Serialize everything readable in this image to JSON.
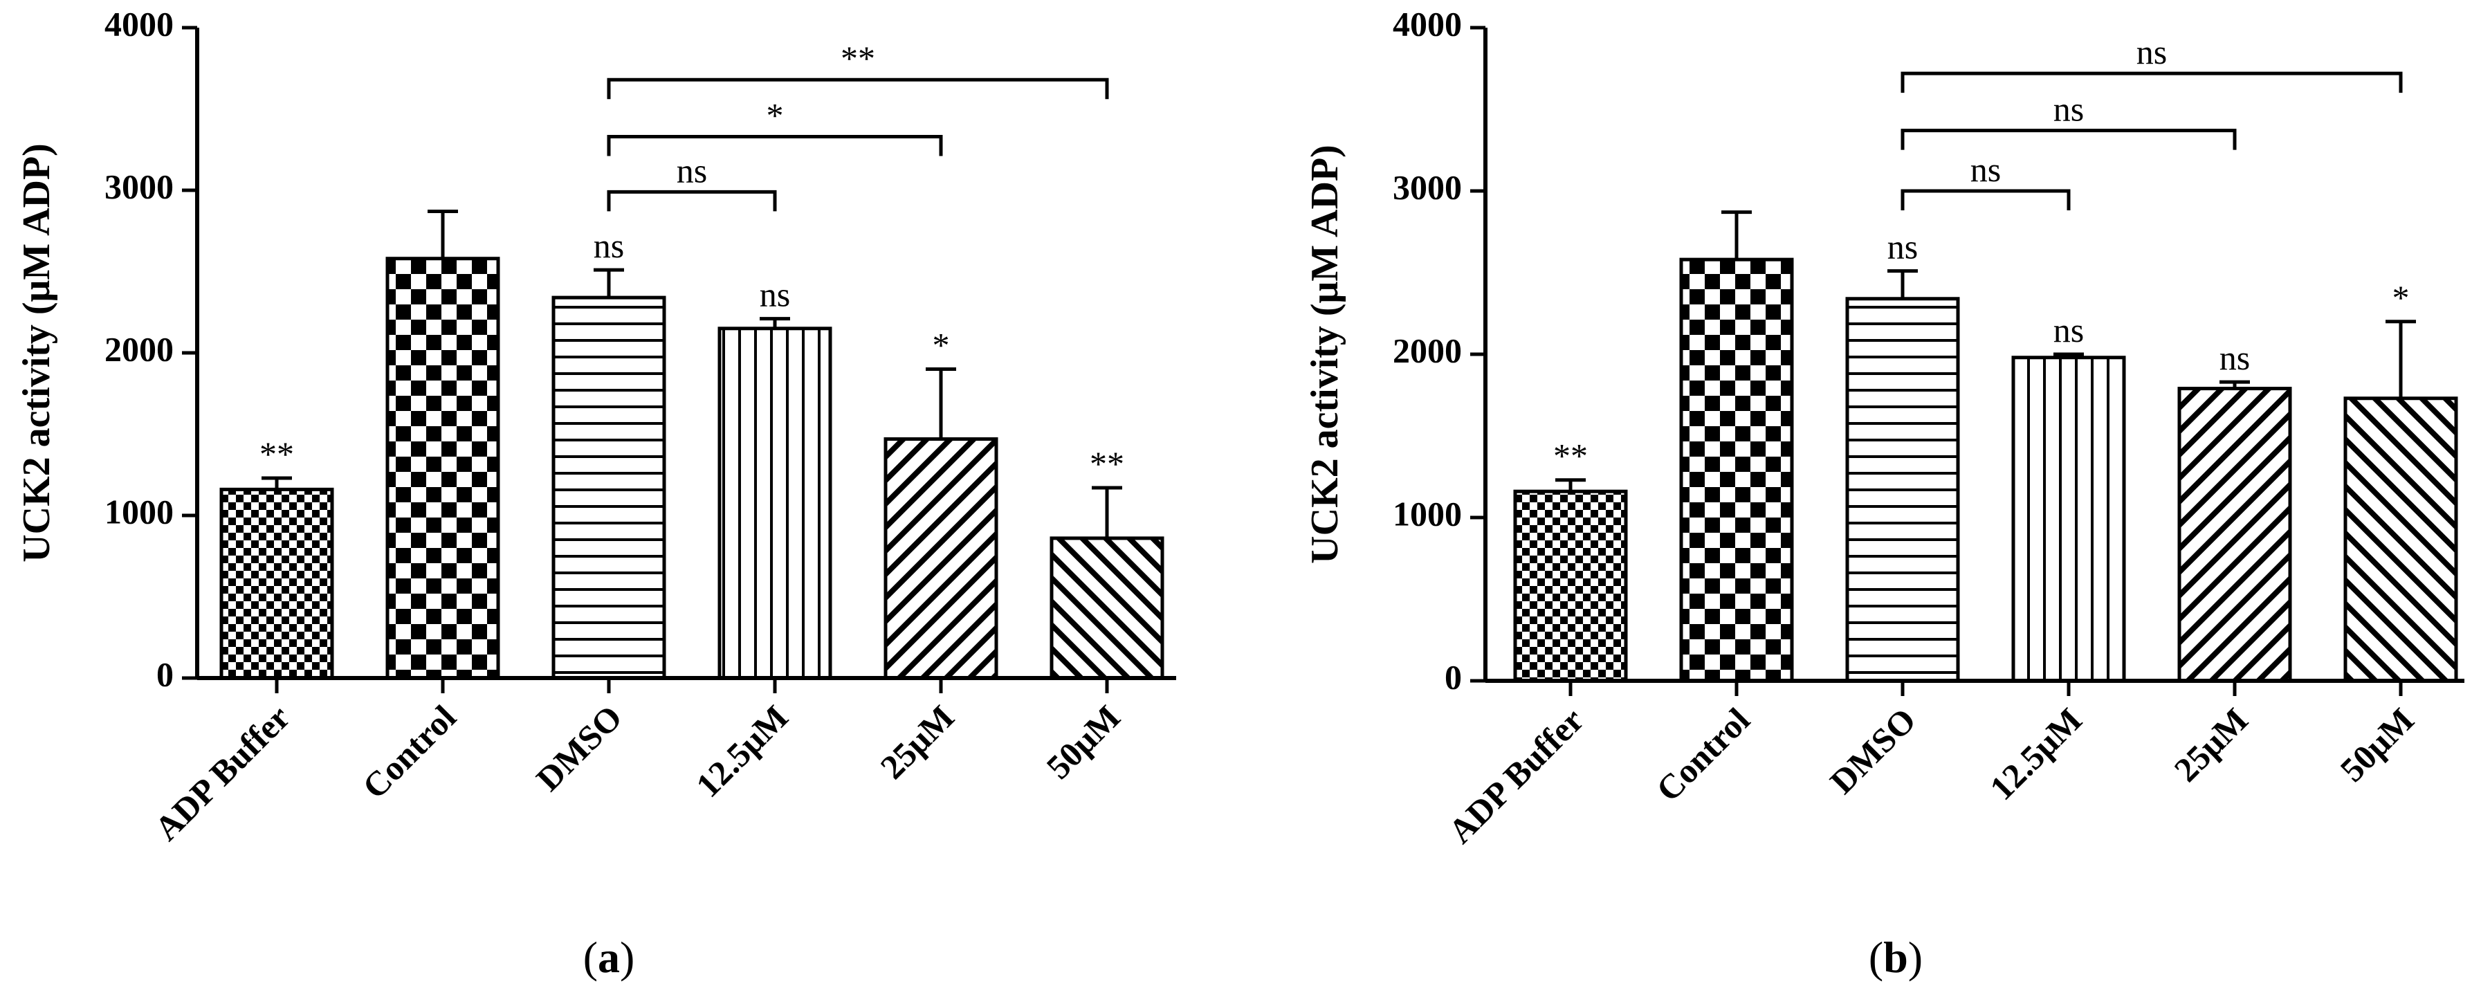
{
  "patterns": {
    "ADP Buffer": "fine-checker",
    "Control": "checker",
    "DMSO": "horizontal-lines",
    "12.5μM": "vertical-lines",
    "25μM": "diagonal-lines",
    "50μM": "anti-diagonal-lines"
  },
  "chart_data": [
    {
      "type": "bar",
      "panel_label": "a",
      "ylabel": "UCK2 activity (μM ADP)",
      "xlabel": "",
      "ylim": [
        0,
        4000
      ],
      "yticks": [
        0,
        1000,
        2000,
        3000,
        4000
      ],
      "categories": [
        "ADP Buffer",
        "Control",
        "DMSO",
        "12.5μM",
        "25μM",
        "50μM"
      ],
      "values": [
        1160,
        2580,
        2340,
        2150,
        1470,
        860
      ],
      "errors": [
        70,
        290,
        170,
        60,
        430,
        310
      ],
      "bar_annotations": [
        "**",
        "",
        "ns",
        "ns",
        "*",
        "**"
      ],
      "brackets": [
        {
          "from": "DMSO",
          "to": "12.5μM",
          "y": 2990,
          "label": "ns"
        },
        {
          "from": "DMSO",
          "to": "25μM",
          "y": 3330,
          "label": "*"
        },
        {
          "from": "DMSO",
          "to": "50μM",
          "y": 3680,
          "label": "**"
        }
      ]
    },
    {
      "type": "bar",
      "panel_label": "b",
      "ylabel": "UCK2 activity (μM ADP)",
      "xlabel": "",
      "ylim": [
        0,
        4000
      ],
      "yticks": [
        0,
        1000,
        2000,
        3000,
        4000
      ],
      "categories": [
        "ADP Buffer",
        "Control",
        "DMSO",
        "12.5μM",
        "25μM",
        "50μM"
      ],
      "values": [
        1160,
        2580,
        2340,
        1980,
        1790,
        1730
      ],
      "errors": [
        70,
        290,
        170,
        20,
        40,
        470
      ],
      "bar_annotations": [
        "**",
        "",
        "ns",
        "ns",
        "ns",
        "*"
      ],
      "brackets": [
        {
          "from": "DMSO",
          "to": "12.5μM",
          "y": 3000,
          "label": "ns"
        },
        {
          "from": "DMSO",
          "to": "25μM",
          "y": 3370,
          "label": "ns"
        },
        {
          "from": "DMSO",
          "to": "50μM",
          "y": 3720,
          "label": "ns"
        }
      ]
    }
  ]
}
